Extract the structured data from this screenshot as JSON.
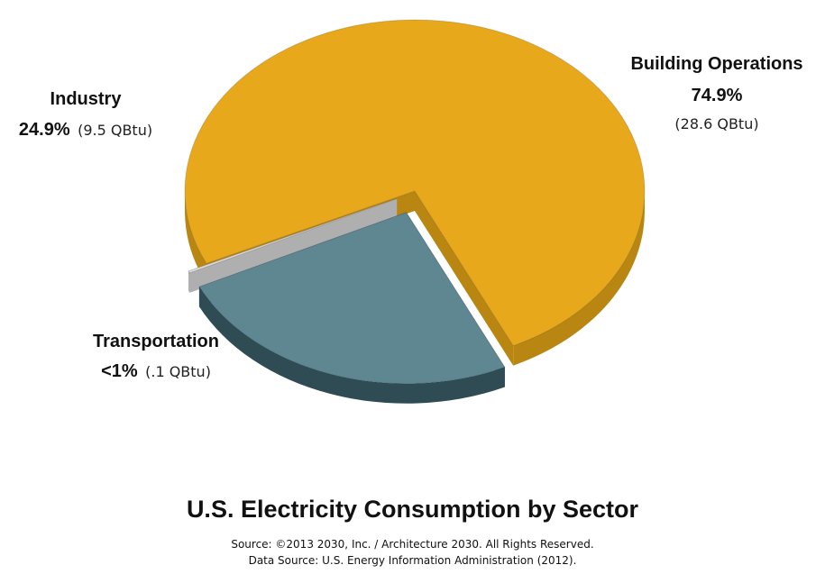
{
  "chart_data": {
    "type": "pie",
    "title": "U.S. Electricity Consumption by Sector",
    "slices": [
      {
        "label": "Building Operations",
        "percent_label": "74.9%",
        "value_label": "(28.6 QBtu)",
        "value": 28.6,
        "percent": 74.9,
        "color": "#E8A81C",
        "side_color": "#B88611",
        "exploded": false
      },
      {
        "label": "Industry",
        "percent_label": "24.9%",
        "value_label": "(9.5 QBtu)",
        "value": 9.5,
        "percent": 24.9,
        "color": "#5E8792",
        "side_color": "#2F4C55",
        "exploded": true
      },
      {
        "label": "Transportation",
        "percent_label": "<1%",
        "value_label": "(.1 QBtu)",
        "value": 0.1,
        "percent": 0.2,
        "color": "#DCDCDC",
        "side_color": "#AFAFAF",
        "exploded": true
      }
    ],
    "value_unit": "QBtu",
    "legend": "none"
  },
  "footer": {
    "source_line_1": "Source: ©2013 2030, Inc. / Architecture 2030. All Rights Reserved.",
    "source_line_2": "Data Source: U.S. Energy Information Administration (2012)."
  }
}
